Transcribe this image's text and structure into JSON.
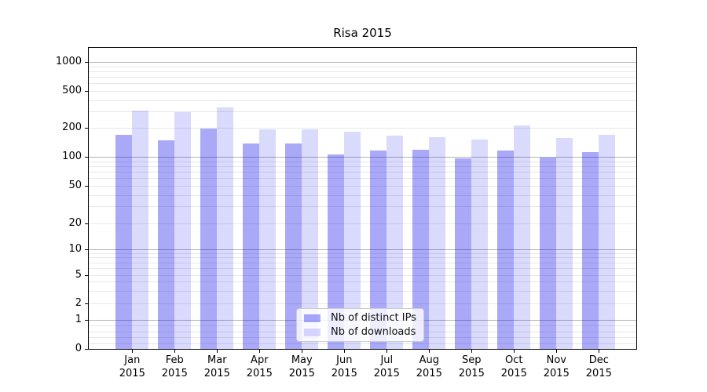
{
  "title": "Risa 2015",
  "chart_data": {
    "type": "bar",
    "title": "Risa 2015",
    "categories": [
      "Jan 2015",
      "Feb 2015",
      "Mar 2015",
      "Apr 2015",
      "May 2015",
      "Jun 2015",
      "Jul 2015",
      "Aug 2015",
      "Sep 2015",
      "Oct 2015",
      "Nov 2015",
      "Dec 2015"
    ],
    "series": [
      {
        "name": "Nb of distinct IPs",
        "color": "rgba(10,10,235,0.35)",
        "values": [
          170,
          149,
          198,
          139,
          137,
          106,
          117,
          119,
          96,
          117,
          99,
          113
        ]
      },
      {
        "name": "Nb of downloads",
        "color": "rgba(10,10,235,0.15)",
        "values": [
          310,
          297,
          330,
          192,
          194,
          183,
          168,
          160,
          151,
          213,
          156,
          170
        ]
      }
    ],
    "xlabel": "",
    "ylabel": "",
    "yscale": "symlog",
    "yticks": [
      0,
      1,
      2,
      5,
      10,
      20,
      50,
      100,
      200,
      500,
      1000
    ],
    "ylim": [
      0,
      1400
    ],
    "grid": true,
    "legend_position": "lower center"
  },
  "legend": {
    "items": [
      {
        "label": "Nb of distinct IPs",
        "color": "rgba(10,10,235,0.35)"
      },
      {
        "label": "Nb of downloads",
        "color": "rgba(10,10,235,0.15)"
      }
    ]
  },
  "colors": {
    "major_grid": "#b2b2b2",
    "minor_grid": "#e8e8e8",
    "spine": "#000000",
    "text": "#000000",
    "legend_bg": "rgba(255,255,255,0.8)",
    "legend_border": "#cccccc"
  }
}
